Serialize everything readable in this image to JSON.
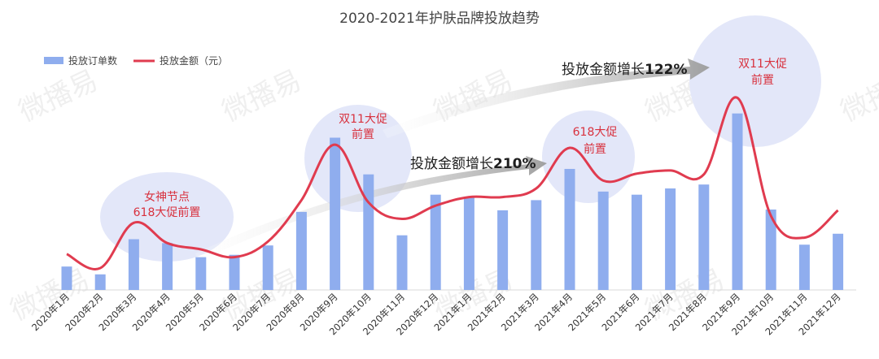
{
  "chart_data": {
    "type": "bar",
    "title": "2020-2021年护肤品牌投放趋势",
    "categories": [
      "2020年1月",
      "2020年2月",
      "2020年3月",
      "2020年4月",
      "2020年5月",
      "2020年6月",
      "2020年7月",
      "2020年8月",
      "2020年9月",
      "2020年10月",
      "2020年11月",
      "2020年12月",
      "2021年1月",
      "2021年2月",
      "2021年3月",
      "2021年4月",
      "2021年5月",
      "2021年6月",
      "2021年7月",
      "2021年8月",
      "2021年9月",
      "2021年10月",
      "2021年11月",
      "2021年12月"
    ],
    "series": [
      {
        "name": "投放订单数",
        "type": "bar",
        "color": "#8fadee",
        "values": [
          30,
          20,
          65,
          60,
          42,
          45,
          57,
          100,
          195,
          148,
          70,
          122,
          118,
          102,
          115,
          155,
          126,
          122,
          130,
          135,
          226,
          103,
          58,
          72
        ]
      },
      {
        "name": "投放金额（元）",
        "type": "line",
        "color": "#e03b4f",
        "values": [
          46,
          28,
          86,
          60,
          52,
          42,
          62,
          115,
          186,
          112,
          91,
          108,
          119,
          119,
          130,
          182,
          140,
          149,
          153,
          148,
          246,
          95,
          67,
          102
        ]
      }
    ],
    "ylim": [
      0,
      260
    ],
    "xlabel": "",
    "ylabel": "",
    "grid": false,
    "legend": "top-left",
    "annotations": {
      "growth_2020": "投放金额增长",
      "growth_2020_value": "210%",
      "growth_2021": "投放金额增长",
      "growth_2021_value": "122%",
      "promo_womens_day_line1": "女神节点",
      "promo_womens_day_line2": "618大促前置",
      "promo_double11_2020_line1": "双11大促",
      "promo_double11_2020_line2": "前置",
      "promo_618_2021_line1": "618大促",
      "promo_618_2021_line2": "前置",
      "promo_double11_2021_line1": "双11大促",
      "promo_double11_2021_line2": "前置"
    }
  },
  "watermark": "微播易",
  "colors": {
    "circle": "#e3e7f9",
    "arrow": "#a9a9a9"
  }
}
